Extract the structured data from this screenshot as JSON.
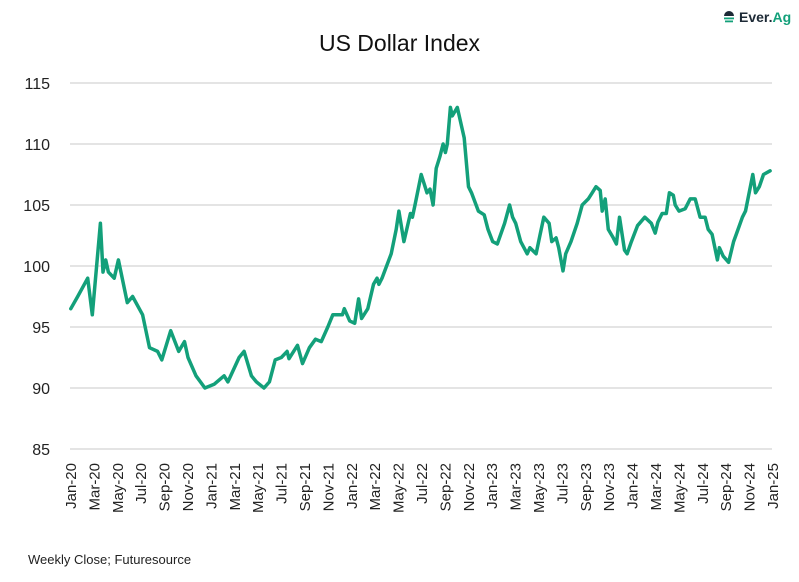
{
  "logo_text": "Ever.Ag",
  "footer": "Weekly Close; Futuresource",
  "chart_data": {
    "type": "line",
    "title": "US Dollar Index",
    "xlabel": "",
    "ylabel": "",
    "ylim": [
      85,
      115
    ],
    "yticks": [
      85,
      90,
      95,
      100,
      105,
      110,
      115
    ],
    "xlim": [
      "2020-01-01",
      "2025-01-01"
    ],
    "xtick_labels": [
      "Jan-20",
      "Mar-20",
      "May-20",
      "Jul-20",
      "Sep-20",
      "Nov-20",
      "Jan-21",
      "Mar-21",
      "May-21",
      "Jul-21",
      "Sep-21",
      "Nov-21",
      "Jan-22",
      "Mar-22",
      "May-22",
      "Jul-22",
      "Sep-22",
      "Nov-22",
      "Jan-23",
      "Mar-23",
      "May-23",
      "Jul-23",
      "Sep-23",
      "Nov-23",
      "Jan-24",
      "Mar-24",
      "May-24",
      "Jul-24",
      "Sep-24",
      "Nov-24",
      "Jan-25"
    ],
    "grid": "horizontal",
    "line_color": "#13a07a",
    "series": [
      {
        "points": [
          [
            "2020-01-03",
            96.5
          ],
          [
            "2020-01-21",
            97.5
          ],
          [
            "2020-02-16",
            99.0
          ],
          [
            "2020-02-28",
            96.0
          ],
          [
            "2020-03-20",
            103.5
          ],
          [
            "2020-03-27",
            99.5
          ],
          [
            "2020-04-03",
            100.5
          ],
          [
            "2020-04-10",
            99.5
          ],
          [
            "2020-04-25",
            99.0
          ],
          [
            "2020-05-06",
            100.5
          ],
          [
            "2020-05-29",
            97.0
          ],
          [
            "2020-06-12",
            97.5
          ],
          [
            "2020-07-08",
            96.0
          ],
          [
            "2020-07-26",
            93.3
          ],
          [
            "2020-08-16",
            93.0
          ],
          [
            "2020-08-27",
            92.3
          ],
          [
            "2020-09-19",
            94.7
          ],
          [
            "2020-10-10",
            93.0
          ],
          [
            "2020-10-25",
            93.8
          ],
          [
            "2020-11-03",
            92.5
          ],
          [
            "2020-11-24",
            91.0
          ],
          [
            "2020-12-17",
            90.0
          ],
          [
            "2021-01-10",
            90.3
          ],
          [
            "2021-02-05",
            91.0
          ],
          [
            "2021-02-15",
            90.5
          ],
          [
            "2021-03-16",
            92.5
          ],
          [
            "2021-03-29",
            93.0
          ],
          [
            "2021-04-17",
            91.0
          ],
          [
            "2021-04-30",
            90.5
          ],
          [
            "2021-05-20",
            90.0
          ],
          [
            "2021-06-03",
            90.5
          ],
          [
            "2021-06-18",
            92.3
          ],
          [
            "2021-07-04",
            92.5
          ],
          [
            "2021-07-19",
            93.0
          ],
          [
            "2021-07-24",
            92.4
          ],
          [
            "2021-08-15",
            93.5
          ],
          [
            "2021-08-28",
            92.0
          ],
          [
            "2021-09-15",
            93.3
          ],
          [
            "2021-10-01",
            94.0
          ],
          [
            "2021-10-16",
            93.8
          ],
          [
            "2021-11-02",
            95.0
          ],
          [
            "2021-11-15",
            96.0
          ],
          [
            "2021-12-10",
            96.0
          ],
          [
            "2021-12-15",
            96.5
          ],
          [
            "2021-12-29",
            95.5
          ],
          [
            "2022-01-11",
            95.3
          ],
          [
            "2022-01-21",
            97.3
          ],
          [
            "2022-01-29",
            95.7
          ],
          [
            "2022-02-14",
            96.5
          ],
          [
            "2022-03-01",
            98.5
          ],
          [
            "2022-03-10",
            99.0
          ],
          [
            "2022-03-15",
            98.5
          ],
          [
            "2022-03-23",
            99.0
          ],
          [
            "2022-04-16",
            101.0
          ],
          [
            "2022-04-29",
            103.0
          ],
          [
            "2022-05-06",
            104.5
          ],
          [
            "2022-05-19",
            102.0
          ],
          [
            "2022-06-05",
            104.3
          ],
          [
            "2022-06-10",
            104.0
          ],
          [
            "2022-06-17",
            105.0
          ],
          [
            "2022-07-03",
            107.5
          ],
          [
            "2022-07-18",
            106.0
          ],
          [
            "2022-07-26",
            106.3
          ],
          [
            "2022-08-03",
            105.0
          ],
          [
            "2022-08-11",
            108.0
          ],
          [
            "2022-08-21",
            109.0
          ],
          [
            "2022-08-29",
            110.0
          ],
          [
            "2022-09-04",
            109.3
          ],
          [
            "2022-09-09",
            110.0
          ],
          [
            "2022-09-17",
            113.0
          ],
          [
            "2022-09-22",
            112.3
          ],
          [
            "2022-10-05",
            113.0
          ],
          [
            "2022-10-23",
            110.5
          ],
          [
            "2022-11-03",
            106.5
          ],
          [
            "2022-11-11",
            106.0
          ],
          [
            "2022-11-29",
            104.5
          ],
          [
            "2022-12-14",
            104.2
          ],
          [
            "2022-12-24",
            103.0
          ],
          [
            "2023-01-05",
            102.0
          ],
          [
            "2023-01-17",
            101.8
          ],
          [
            "2023-02-05",
            103.5
          ],
          [
            "2023-02-18",
            105.0
          ],
          [
            "2023-02-26",
            104.0
          ],
          [
            "2023-03-06",
            103.5
          ],
          [
            "2023-03-19",
            102.0
          ],
          [
            "2023-04-05",
            101.0
          ],
          [
            "2023-04-12",
            101.5
          ],
          [
            "2023-04-28",
            101.0
          ],
          [
            "2023-05-08",
            102.5
          ],
          [
            "2023-05-18",
            104.0
          ],
          [
            "2023-06-01",
            103.5
          ],
          [
            "2023-06-08",
            102.0
          ],
          [
            "2023-06-19",
            102.3
          ],
          [
            "2023-06-26",
            101.5
          ],
          [
            "2023-07-07",
            99.6
          ],
          [
            "2023-07-14",
            101.0
          ],
          [
            "2023-07-28",
            102.0
          ],
          [
            "2023-08-13",
            103.5
          ],
          [
            "2023-08-26",
            105.0
          ],
          [
            "2023-09-11",
            105.5
          ],
          [
            "2023-09-21",
            106.0
          ],
          [
            "2023-10-01",
            106.5
          ],
          [
            "2023-10-12",
            106.2
          ],
          [
            "2023-10-17",
            104.5
          ],
          [
            "2023-10-25",
            105.5
          ],
          [
            "2023-11-02",
            103.0
          ],
          [
            "2023-11-15",
            102.3
          ],
          [
            "2023-11-23",
            101.8
          ],
          [
            "2023-12-01",
            104.0
          ],
          [
            "2023-12-14",
            101.3
          ],
          [
            "2023-12-21",
            101.0
          ],
          [
            "2024-01-01",
            102.0
          ],
          [
            "2024-01-17",
            103.3
          ],
          [
            "2024-02-05",
            104.0
          ],
          [
            "2024-02-22",
            103.5
          ],
          [
            "2024-03-03",
            102.7
          ],
          [
            "2024-03-10",
            103.6
          ],
          [
            "2024-03-21",
            104.3
          ],
          [
            "2024-04-01",
            104.3
          ],
          [
            "2024-04-09",
            106.0
          ],
          [
            "2024-04-19",
            105.8
          ],
          [
            "2024-04-24",
            105.0
          ],
          [
            "2024-05-04",
            104.5
          ],
          [
            "2024-05-20",
            104.7
          ],
          [
            "2024-06-02",
            105.5
          ],
          [
            "2024-06-15",
            105.5
          ],
          [
            "2024-06-28",
            104.0
          ],
          [
            "2024-07-11",
            104.0
          ],
          [
            "2024-07-19",
            103.0
          ],
          [
            "2024-07-29",
            102.6
          ],
          [
            "2024-08-12",
            100.5
          ],
          [
            "2024-08-17",
            101.5
          ],
          [
            "2024-08-27",
            100.8
          ],
          [
            "2024-09-10",
            100.3
          ],
          [
            "2024-09-23",
            102.0
          ],
          [
            "2024-10-01",
            102.7
          ],
          [
            "2024-10-16",
            104.0
          ],
          [
            "2024-10-24",
            104.5
          ],
          [
            "2024-11-12",
            107.5
          ],
          [
            "2024-11-19",
            106.0
          ],
          [
            "2024-11-29",
            106.5
          ],
          [
            "2024-12-10",
            107.5
          ],
          [
            "2024-12-27",
            107.8
          ]
        ]
      }
    ]
  }
}
